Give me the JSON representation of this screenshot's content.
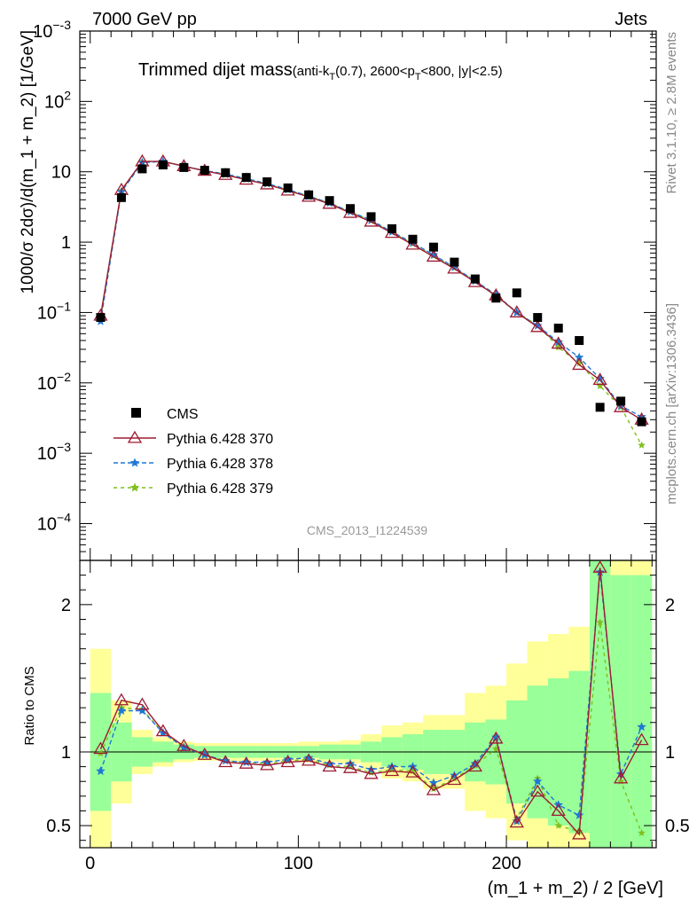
{
  "header": {
    "left": "7000 GeV pp",
    "right": "Jets",
    "side_top": "Rivet 3.1.10, ≥ 2.8M events",
    "side_bottom": "mcplots.cern.ch [arXiv:1306.3436]",
    "watermark": "CMS_2013_I1224539"
  },
  "title": {
    "main": "Trimmed dijet mass",
    "sub_part1": "(anti-k",
    "sub_sub1": "T",
    "sub_part2": "(0.7), 2600<p",
    "sub_sub2": "T",
    "sub_part3": "<800, |y|<2.5)"
  },
  "axes": {
    "ylabel_main": "1000/σ 2dσ)/d(m_1 + m_2) [1/GeV]",
    "ylabel_ratio": "Ratio to CMS",
    "xlabel": "(m_1 + m_2) / 2 [GeV]"
  },
  "colors": {
    "cms": "#000000",
    "p370": "#9e1b32",
    "p378": "#1f78d4",
    "p379": "#7fbf1f",
    "band_inner": "#99ff99",
    "band_outer": "#ffff99"
  },
  "legend": [
    {
      "label": "CMS",
      "key": "cms"
    },
    {
      "label": "Pythia 6.428 370",
      "key": "p370"
    },
    {
      "label": "Pythia 6.428 378",
      "key": "p378"
    },
    {
      "label": "Pythia 6.428 379",
      "key": "p379"
    }
  ],
  "chart_data": {
    "type": "scatter",
    "xlim": [
      -5,
      272
    ],
    "ylim_main": [
      3e-05,
      1000
    ],
    "ylim_ratio": [
      0.35,
      2.3
    ],
    "yscale_main": "log",
    "legend_position": "bottom-left",
    "x_ticks": [
      0,
      100,
      200
    ],
    "x": [
      5,
      15,
      25,
      35,
      45,
      55,
      65,
      75,
      85,
      95,
      105,
      115,
      125,
      135,
      145,
      155,
      165,
      175,
      185,
      195,
      205,
      215,
      225,
      235,
      245,
      255,
      265
    ],
    "cms": [
      0.085,
      4.3,
      11,
      12.5,
      11.5,
      10.5,
      9.7,
      8.3,
      7.2,
      5.9,
      4.7,
      3.9,
      3.0,
      2.3,
      1.55,
      1.1,
      0.85,
      0.52,
      0.3,
      0.16,
      0.19,
      0.085,
      0.06,
      0.04,
      0.0045,
      0.0055,
      0.0028
    ],
    "series": [
      {
        "name": "Pythia 6.428 370",
        "key": "p370",
        "values": [
          0.09,
          5.5,
          14,
          14,
          12,
          10.3,
          9.0,
          7.7,
          6.6,
          5.4,
          4.4,
          3.5,
          2.6,
          1.95,
          1.35,
          0.92,
          0.62,
          0.42,
          0.27,
          0.175,
          0.1,
          0.062,
          0.036,
          0.018,
          0.011,
          0.0045,
          0.003
        ],
        "ratio": [
          1.02,
          1.35,
          1.32,
          1.14,
          1.04,
          0.98,
          0.93,
          0.92,
          0.91,
          0.93,
          0.94,
          0.9,
          0.89,
          0.85,
          0.87,
          0.86,
          0.74,
          0.81,
          0.9,
          1.09,
          0.52,
          0.73,
          0.6,
          0.44,
          2.25,
          0.82,
          1.08
        ]
      },
      {
        "name": "Pythia 6.428 378",
        "key": "p378",
        "values": [
          0.075,
          5.2,
          13.5,
          14,
          12,
          10.4,
          9.3,
          8.0,
          6.8,
          5.6,
          4.5,
          3.6,
          2.7,
          2.05,
          1.4,
          0.98,
          0.66,
          0.44,
          0.28,
          0.18,
          0.1,
          0.065,
          0.038,
          0.023,
          0.0115,
          0.0047,
          0.0033
        ],
        "ratio": [
          0.87,
          1.28,
          1.28,
          1.13,
          1.03,
          0.98,
          0.94,
          0.93,
          0.93,
          0.95,
          0.96,
          0.92,
          0.92,
          0.88,
          0.9,
          0.9,
          0.79,
          0.84,
          0.92,
          1.1,
          0.53,
          0.8,
          0.64,
          0.57,
          2.22,
          0.85,
          1.17
        ]
      },
      {
        "name": "Pythia 6.428 379",
        "key": "p379",
        "values": [
          0.085,
          5.4,
          14,
          14,
          12,
          10.3,
          9.1,
          7.8,
          6.7,
          5.5,
          4.5,
          3.6,
          2.7,
          2.0,
          1.38,
          0.95,
          0.64,
          0.43,
          0.28,
          0.17,
          0.1,
          0.066,
          0.032,
          0.019,
          0.009,
          0.0045,
          0.0013
        ],
        "ratio": [
          0.99,
          1.3,
          1.29,
          1.13,
          1.04,
          0.98,
          0.94,
          0.93,
          0.92,
          0.94,
          0.95,
          0.91,
          0.9,
          0.86,
          0.88,
          0.87,
          0.75,
          0.82,
          0.91,
          1.02,
          0.55,
          0.82,
          0.5,
          0.46,
          1.88,
          0.8,
          0.45
        ]
      }
    ],
    "band_inner": [
      0.4,
      0.2,
      0.1,
      0.07,
      0.05,
      0.04,
      0.04,
      0.04,
      0.04,
      0.04,
      0.04,
      0.05,
      0.05,
      0.07,
      0.1,
      0.12,
      0.15,
      0.15,
      0.2,
      0.22,
      0.35,
      0.45,
      0.5,
      0.55,
      1.3,
      1.2,
      1.2
    ],
    "band_outer": [
      0.7,
      0.35,
      0.15,
      0.1,
      0.07,
      0.06,
      0.06,
      0.06,
      0.06,
      0.06,
      0.07,
      0.07,
      0.08,
      0.12,
      0.18,
      0.2,
      0.25,
      0.25,
      0.4,
      0.45,
      0.6,
      0.75,
      0.8,
      0.85,
      1.5,
      1.4,
      1.4
    ]
  }
}
